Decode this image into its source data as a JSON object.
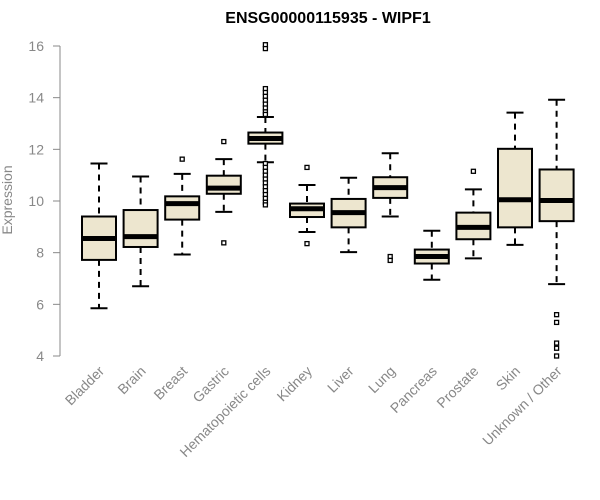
{
  "chart_data": {
    "type": "boxplot",
    "title": "ENSG00000115935 - WIPF1",
    "xlabel": "",
    "ylabel": "Expression",
    "ylim": [
      4,
      16
    ],
    "yticks": [
      4,
      6,
      8,
      10,
      12,
      14,
      16
    ],
    "grid": false,
    "box_fill": "#ede6cf",
    "categories": [
      "Bladder",
      "Brain",
      "Breast",
      "Gastric",
      "Hematopoietic cells",
      "Kidney",
      "Liver",
      "Lung",
      "Pancreas",
      "Prostate",
      "Skin",
      "Unknown / Other"
    ],
    "boxes": [
      {
        "name": "Bladder",
        "whisker_low": 5.85,
        "q1": 7.72,
        "median": 8.55,
        "q3": 9.4,
        "whisker_high": 11.45,
        "outliers": []
      },
      {
        "name": "Brain",
        "whisker_low": 6.7,
        "q1": 8.22,
        "median": 8.62,
        "q3": 9.65,
        "whisker_high": 10.95,
        "outliers": []
      },
      {
        "name": "Breast",
        "whisker_low": 7.93,
        "q1": 9.28,
        "median": 9.9,
        "q3": 10.18,
        "whisker_high": 11.05,
        "outliers": [
          11.62
        ]
      },
      {
        "name": "Gastric",
        "whisker_low": 9.58,
        "q1": 10.28,
        "median": 10.5,
        "q3": 10.98,
        "whisker_high": 11.62,
        "outliers": [
          12.3,
          8.38
        ]
      },
      {
        "name": "Hematopoietic cells",
        "whisker_low": 11.5,
        "q1": 12.22,
        "median": 12.42,
        "q3": 12.65,
        "whisker_high": 13.25,
        "outliers": [
          16.05,
          15.9,
          14.35,
          14.2,
          14.05,
          13.9,
          13.75,
          13.6,
          13.45,
          13.35,
          11.45,
          11.3,
          11.15,
          11.0,
          10.85,
          10.7,
          10.55,
          10.4,
          10.25,
          10.1,
          9.95,
          9.85
        ]
      },
      {
        "name": "Kidney",
        "whisker_low": 8.8,
        "q1": 9.38,
        "median": 9.7,
        "q3": 9.9,
        "whisker_high": 10.62,
        "outliers": [
          11.3,
          8.35
        ]
      },
      {
        "name": "Liver",
        "whisker_low": 8.02,
        "q1": 8.98,
        "median": 9.55,
        "q3": 10.08,
        "whisker_high": 10.9,
        "outliers": []
      },
      {
        "name": "Lung",
        "whisker_low": 9.4,
        "q1": 10.12,
        "median": 10.52,
        "q3": 10.92,
        "whisker_high": 11.85,
        "outliers": [
          7.85,
          7.7
        ]
      },
      {
        "name": "Pancreas",
        "whisker_low": 6.95,
        "q1": 7.58,
        "median": 7.85,
        "q3": 8.12,
        "whisker_high": 8.85,
        "outliers": []
      },
      {
        "name": "Prostate",
        "whisker_low": 7.78,
        "q1": 8.52,
        "median": 8.98,
        "q3": 9.55,
        "whisker_high": 10.45,
        "outliers": [
          11.15
        ]
      },
      {
        "name": "Skin",
        "whisker_low": 8.3,
        "q1": 8.98,
        "median": 10.05,
        "q3": 12.02,
        "whisker_high": 13.42,
        "outliers": []
      },
      {
        "name": "Unknown / Other",
        "whisker_low": 6.78,
        "q1": 9.22,
        "median": 10.02,
        "q3": 11.22,
        "whisker_high": 13.92,
        "outliers": [
          5.6,
          5.3,
          4.5,
          4.3,
          4.0
        ]
      }
    ]
  }
}
